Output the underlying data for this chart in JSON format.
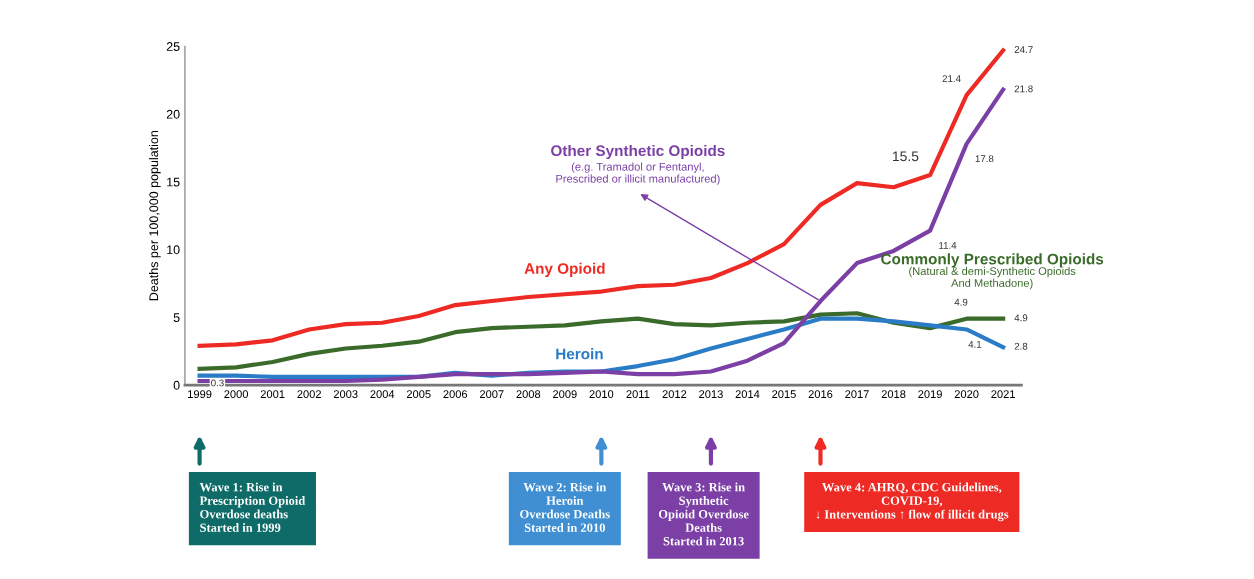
{
  "chart_data": {
    "type": "line",
    "ylabel": "Deaths per 100,000 population",
    "categories": [
      "1999",
      "2000",
      "2001",
      "2002",
      "2003",
      "2004",
      "2005",
      "2006",
      "2007",
      "2008",
      "2009",
      "2010",
      "2011",
      "2012",
      "2013",
      "2014",
      "2015",
      "2016",
      "2017",
      "2018",
      "2019",
      "2020",
      "2021"
    ],
    "ylim": [
      0,
      25
    ],
    "yticks": [
      0,
      5,
      10,
      15,
      20,
      25
    ],
    "grid": false,
    "legend": false,
    "marker": "none",
    "line_style": "solid",
    "series": [
      {
        "name": "Any Opioid",
        "color": "#ee2a24",
        "values": [
          2.9,
          3.0,
          3.3,
          4.1,
          4.5,
          4.6,
          5.1,
          5.9,
          6.2,
          6.5,
          6.7,
          6.9,
          7.3,
          7.4,
          7.9,
          9.0,
          10.4,
          13.3,
          14.9,
          14.6,
          15.5,
          21.4,
          24.7
        ],
        "value_labels": [
          null,
          null,
          null,
          null,
          null,
          null,
          null,
          null,
          null,
          null,
          null,
          null,
          null,
          null,
          null,
          null,
          null,
          null,
          null,
          null,
          "15.5",
          "21.4",
          "24.7"
        ]
      },
      {
        "name": "Commonly Prescribed Opioids",
        "color": "#3a6b2a",
        "values": [
          1.2,
          1.3,
          1.7,
          2.3,
          2.7,
          2.9,
          3.2,
          3.9,
          4.2,
          4.3,
          4.4,
          4.7,
          4.9,
          4.5,
          4.4,
          4.6,
          4.7,
          5.2,
          5.3,
          4.6,
          4.2,
          4.9,
          4.9
        ],
        "value_labels": [
          null,
          null,
          null,
          null,
          null,
          null,
          null,
          null,
          null,
          null,
          null,
          null,
          null,
          null,
          null,
          null,
          null,
          null,
          null,
          null,
          null,
          "4.9",
          "4.9"
        ]
      },
      {
        "name": "Heroin",
        "color": "#2a7cc7",
        "values": [
          0.7,
          0.7,
          0.6,
          0.6,
          0.6,
          0.6,
          0.6,
          0.9,
          0.7,
          0.9,
          1.0,
          1.0,
          1.4,
          1.9,
          2.7,
          3.4,
          4.1,
          4.9,
          4.9,
          4.7,
          4.4,
          4.1,
          2.8
        ],
        "value_labels": [
          null,
          null,
          null,
          null,
          null,
          null,
          null,
          null,
          null,
          null,
          null,
          null,
          null,
          null,
          null,
          null,
          null,
          null,
          null,
          null,
          null,
          "4.1",
          "2.8"
        ]
      },
      {
        "name": "Other Synthetic Opioids",
        "color": "#7b3fa6",
        "values": [
          0.3,
          0.3,
          0.3,
          0.3,
          0.3,
          0.4,
          0.6,
          0.8,
          0.8,
          0.8,
          0.9,
          1.0,
          0.8,
          0.8,
          1.0,
          1.8,
          3.1,
          6.2,
          9.0,
          9.9,
          11.4,
          17.8,
          21.8
        ],
        "value_labels": [
          "0.3",
          null,
          null,
          null,
          null,
          null,
          null,
          null,
          null,
          null,
          null,
          null,
          null,
          null,
          null,
          null,
          null,
          null,
          null,
          null,
          "11.4",
          "17.8",
          "21.8"
        ]
      }
    ],
    "annotations": [
      {
        "text": "(e.g. Tramadol or Fentanyl,\nPrescribed or illicit manufactured)",
        "x": "2016",
        "y": 6.2
      },
      "(Natural & demi-Synthetic Opioids\nAnd Methadone)",
      "Wave 1: Rise in\nPrescription Opioid\nOverdose deaths\nStarted in 1999",
      "Wave 2: Rise in\nHeroin\nOverdose Deaths\nStarted in 2010",
      "Wave 3: Rise in\nSynthetic\nOpioid Overdose\nDeaths\nStarted in 2013",
      "Wave 4: AHRQ, CDC Guidelines,\nCOVID-19,\n↓ Interventions ↑ flow of illicit drugs"
    ]
  }
}
